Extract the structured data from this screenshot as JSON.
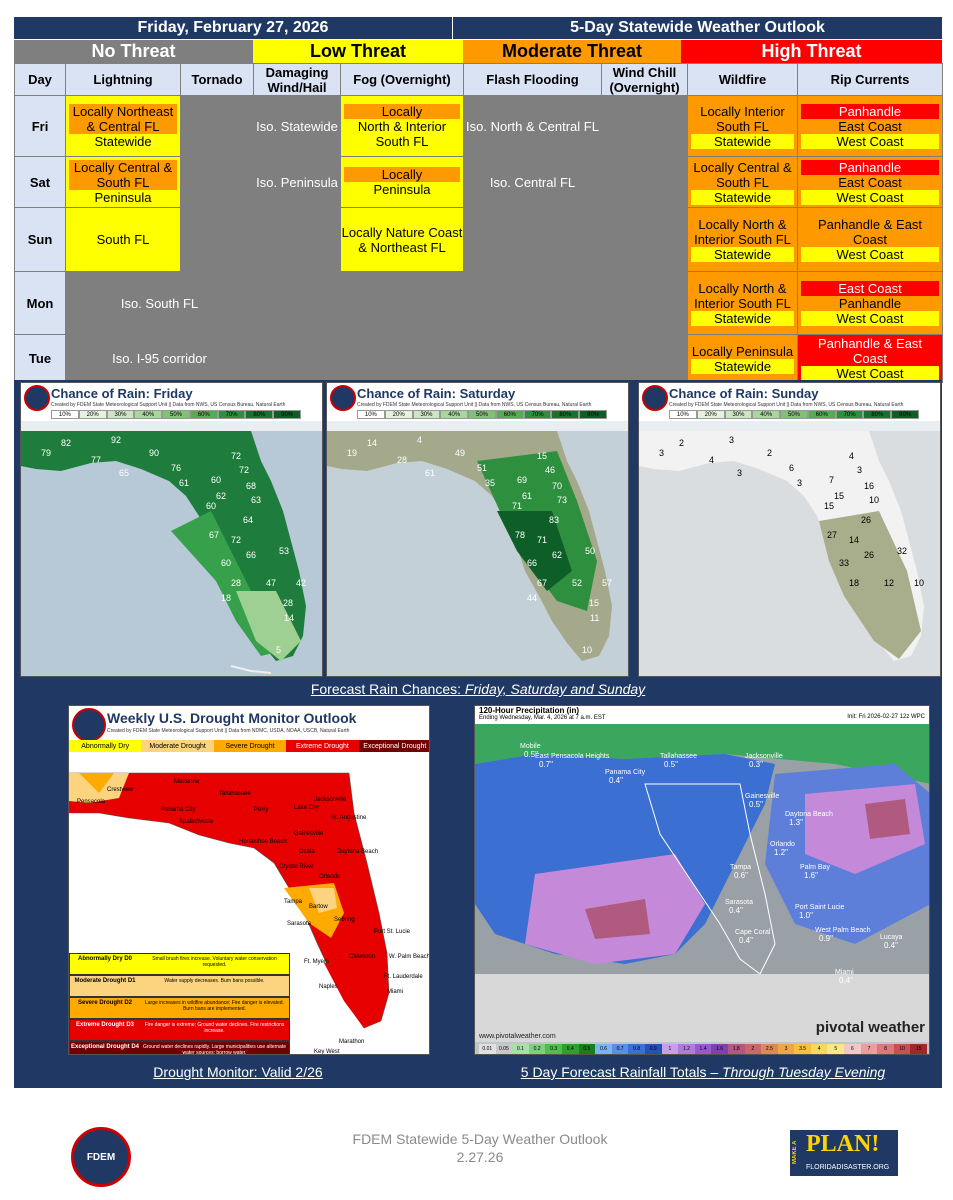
{
  "header": {
    "date": "Friday, February 27, 2026",
    "title": "5-Day Statewide Weather Outlook"
  },
  "threat_levels": {
    "none": "No Threat",
    "low": "Low Threat",
    "moderate": "Moderate Threat",
    "high": "High Threat"
  },
  "colors": {
    "no": "#7f7f7f",
    "low": "#ffff00",
    "moderate": "#ff9900",
    "high": "#ff0000",
    "header": "#1f3864"
  },
  "columns": [
    "Day",
    "Lightning",
    "Tornado",
    "Damaging Wind/Hail",
    "Fog (Overnight)",
    "Flash Flooding",
    "Wind Chill (Overnight)",
    "Wildfire",
    "Rip Currents"
  ],
  "rows": [
    {
      "day": "Fri",
      "lightning": [
        "Locally Northeast & Central FL",
        "Statewide"
      ],
      "wind": "Iso. Statewide",
      "fog": [
        "Locally",
        "North & Interior South FL"
      ],
      "flood": "Iso. North & Central FL",
      "wildfire": [
        "Locally Interior South FL",
        "Statewide"
      ],
      "rip": [
        "Panhandle",
        "East Coast",
        "West Coast"
      ]
    },
    {
      "day": "Sat",
      "lightning": [
        "Locally Central & South FL",
        "Peninsula"
      ],
      "wind": "Iso. Peninsula",
      "fog": [
        "Locally",
        "Peninsula"
      ],
      "flood": "Iso. Central FL",
      "wildfire": [
        "Locally Central & South FL",
        "Statewide"
      ],
      "rip": [
        "Panhandle",
        "East Coast",
        "West Coast"
      ]
    },
    {
      "day": "Sun",
      "lightning": [
        "South FL"
      ],
      "fog": [
        "Locally Nature Coast & Northeast FL"
      ],
      "wildfire": [
        "Locally North & Interior South FL",
        "Statewide"
      ],
      "rip": [
        "Panhandle & East Coast",
        "West Coast"
      ]
    },
    {
      "day": "Mon",
      "lightning": [
        "Iso. South FL"
      ],
      "wildfire": [
        "Locally North & Interior South FL",
        "Statewide"
      ],
      "rip": [
        "East Coast",
        "Panhandle",
        "West Coast"
      ]
    },
    {
      "day": "Tue",
      "lightning": [
        "Iso. I-95 corridor"
      ],
      "wildfire": [
        "Locally Peninsula",
        "Statewide"
      ],
      "rip": [
        "Panhandle & East Coast",
        "West Coast"
      ]
    }
  ],
  "rain_maps": {
    "credit": "Created by FDEM State Meteorological Support Unit || Data from NWS, US Census Bureau, Natural Earth",
    "scale": [
      "10%",
      "20%",
      "30%",
      "40%",
      "50%",
      "60%",
      "70%",
      "80%",
      "90%"
    ],
    "maps": [
      {
        "title": "Chance of Rain: Friday",
        "values": [
          "82",
          "92",
          "79",
          "77",
          "90",
          "76",
          "72",
          "72",
          "65",
          "61",
          "60",
          "68",
          "62",
          "63",
          "60",
          "64",
          "67",
          "72",
          "66",
          "53",
          "60",
          "28",
          "47",
          "42",
          "18",
          "28",
          "14",
          "5"
        ]
      },
      {
        "title": "Chance of Rain: Saturday",
        "values": [
          "14",
          "4",
          "19",
          "28",
          "49",
          "51",
          "15",
          "46",
          "61",
          "35",
          "69",
          "70",
          "61",
          "73",
          "71",
          "83",
          "78",
          "71",
          "62",
          "50",
          "66",
          "67",
          "52",
          "57",
          "44",
          "15",
          "11",
          "10"
        ]
      },
      {
        "title": "Chance of Rain: Sunday",
        "values": [
          "2",
          "3",
          "3",
          "4",
          "2",
          "6",
          "4",
          "3",
          "3",
          "3",
          "7",
          "16",
          "15",
          "10",
          "15",
          "26",
          "27",
          "14",
          "26",
          "32",
          "33",
          "18",
          "12",
          "10"
        ]
      }
    ],
    "caption_main": "Forecast Rain Chances: ",
    "caption_italic": "Friday, Saturday and Sunday"
  },
  "drought": {
    "title": "Weekly U.S. Drought Monitor Outlook",
    "credit": "Created by FDEM State Meteorological Support Unit || Data from NDMC, USDA, NOAA, USCB, Natural Earth",
    "categories": [
      "Abnormally Dry",
      "Moderate Drought",
      "Severe Drought",
      "Extreme Drought",
      "Exceptional Drought"
    ],
    "legend": [
      {
        "name": "Abnormally Dry",
        "code": "D0",
        "desc": "Small brush fires increase.",
        "note": "Voluntary water conservation requested.",
        "color": "#ffff00"
      },
      {
        "name": "Moderate Drought",
        "code": "D1",
        "desc": "Water supply decreases.",
        "note": "Burn bans possible.",
        "color": "#fcd37f"
      },
      {
        "name": "Severe Drought",
        "code": "D2",
        "desc": "Large increases in wildfire abundance; Fire danger is elevated.",
        "note": "Burn bans are implemented.",
        "color": "#ffaa00"
      },
      {
        "name": "Extreme Drought",
        "code": "D3",
        "desc": "Fire danger is extreme; Ground water declines.",
        "note": "Fire restrictions increase.",
        "color": "#e60000"
      },
      {
        "name": "Exceptional Drought",
        "code": "D4",
        "desc": "Ground water declines rapidly.",
        "note": "Large municipalities use alternate water sources; borrow water.",
        "color": "#730000"
      }
    ],
    "cities": [
      "Pensacola",
      "Crestview",
      "Marianna",
      "Tallahassee",
      "Panama City",
      "Apalachicola",
      "Perry",
      "Lake City",
      "Jacksonville",
      "St. Augustine",
      "Gainesville",
      "Horseshoe Beach",
      "Ocala",
      "Daytona Beach",
      "Crystal River",
      "Orlando",
      "Tampa",
      "Bartow",
      "Sebring",
      "Sarasota",
      "Port St. Lucie",
      "Ft. Myers",
      "Clewiston",
      "W. Palm Beach",
      "Naples",
      "Ft. Lauderdale",
      "Miami",
      "Marathon",
      "Key West"
    ],
    "caption": "Drought Monitor: Valid 2/26"
  },
  "precip": {
    "title": "120-Hour Precipitation (in)",
    "subtitle": "Ending Wednesday, Mar. 4, 2026 at 7 a.m. EST",
    "init": "Init: Fri 2026-02-27 12z WPC",
    "cities": [
      {
        "name": "Mobile",
        "value": "0.5\""
      },
      {
        "name": "East Pensacola Heights",
        "value": "0.7\""
      },
      {
        "name": "Tallahassee",
        "value": "0.5\""
      },
      {
        "name": "Panama City",
        "value": "0.4\""
      },
      {
        "name": "Jacksonville",
        "value": "0.3\""
      },
      {
        "name": "Gainesville",
        "value": "0.5\""
      },
      {
        "name": "Daytona Beach",
        "value": "1.3\""
      },
      {
        "name": "Orlando",
        "value": "1.2\""
      },
      {
        "name": "Tampa",
        "value": "0.6\""
      },
      {
        "name": "Palm Bay",
        "value": "1.6\""
      },
      {
        "name": "Sarasota",
        "value": "0.4\""
      },
      {
        "name": "Port Saint Lucie",
        "value": "1.0\""
      },
      {
        "name": "Cape Coral",
        "value": "0.4\""
      },
      {
        "name": "West Palm Beach",
        "value": "0.9\""
      },
      {
        "name": "Lucaya",
        "value": "0.4\""
      },
      {
        "name": "Miami",
        "value": "0.4\""
      }
    ],
    "website": "www.pivotalweather.com",
    "brand": "pivotal weather",
    "scale": [
      "0.01",
      "0.05",
      "0.1",
      "0.2",
      "0.3",
      "0.4",
      "0.5",
      "0.6",
      "0.7",
      "0.8",
      "0.9",
      "1",
      "1.2",
      "1.4",
      "1.6",
      "1.8",
      "2",
      "2.5",
      "3",
      "3.5",
      "4",
      "5",
      "6",
      "7",
      "8",
      "10",
      "15"
    ],
    "caption_main": "5 Day Forecast Rainfall Totals – ",
    "caption_italic": "Through Tuesday Evening"
  },
  "footer": {
    "line1": "FDEM Statewide 5-Day Weather Outlook",
    "line2": "2.27.26",
    "logo_left": "FDEM",
    "logo_right_top": "PLAN!",
    "logo_right_side": "MAKE A",
    "logo_right_bottom": "FLORIDADISASTER.ORG"
  }
}
